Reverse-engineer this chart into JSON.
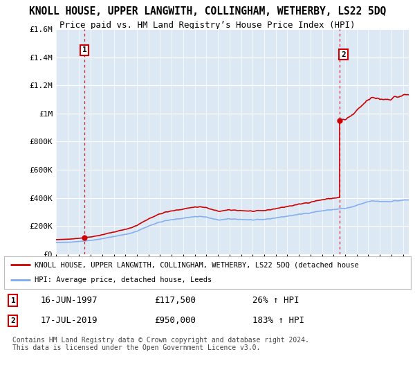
{
  "title": "KNOLL HOUSE, UPPER LANGWITH, COLLINGHAM, WETHERBY, LS22 5DQ",
  "subtitle": "Price paid vs. HM Land Registry’s House Price Index (HPI)",
  "sale1_date": "16-JUN-1997",
  "sale1_price": 117500,
  "sale1_label": "£117,500",
  "sale1_hpi_pct": "26% ↑ HPI",
  "sale2_date": "17-JUL-2019",
  "sale2_price": 950000,
  "sale2_label": "£950,000",
  "sale2_hpi_pct": "183% ↑ HPI",
  "legend_line1": "KNOLL HOUSE, UPPER LANGWITH, COLLINGHAM, WETHERBY, LS22 5DQ (detached house",
  "legend_line2": "HPI: Average price, detached house, Leeds",
  "footer": "Contains HM Land Registry data © Crown copyright and database right 2024.\nThis data is licensed under the Open Government Licence v3.0.",
  "ylim": [
    0,
    1600000
  ],
  "xlim_start": 1995.0,
  "xlim_end": 2025.5,
  "hpi_color": "#7aaaee",
  "price_color": "#cc0000",
  "bg_color": "#dde8f5",
  "plot_bg": "#dde8f5",
  "grid_color": "#ffffff",
  "title_fontsize": 10.5,
  "subtitle_fontsize": 9.5
}
